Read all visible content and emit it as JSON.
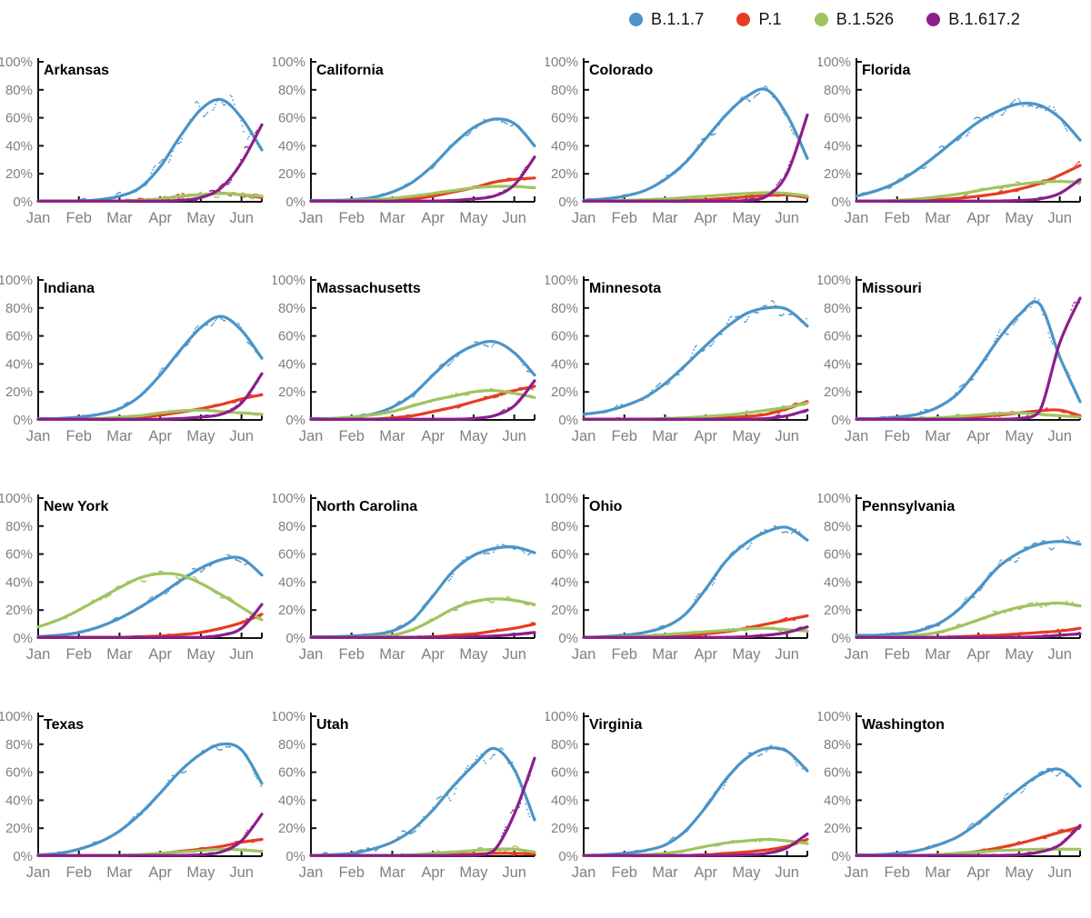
{
  "legend": {
    "position": "top-right",
    "items": [
      {
        "label": "B.1.1.7",
        "color": "#4A94C8"
      },
      {
        "label": "P.1",
        "color": "#E63C23"
      },
      {
        "label": "B.1.526",
        "color": "#A0C460"
      },
      {
        "label": "B.1.617.2",
        "color": "#8C1E8C"
      }
    ]
  },
  "axes": {
    "y_tick_labels": [
      "100%",
      "80%",
      "60%",
      "40%",
      "20%",
      "0%"
    ],
    "x_tick_labels": [
      "Jan",
      "Feb",
      "Mar",
      "Apr",
      "May",
      "Jun"
    ],
    "ylim": [
      0,
      100
    ],
    "xlim": [
      0,
      5.5
    ],
    "grid": false,
    "tick_label_color": "#808080",
    "axis_color": "#111111"
  },
  "chart_data": {
    "type": "line",
    "x_unit": "month (0=Jan 1 ... 5.5=mid-Jun)",
    "x_samples": [
      0,
      0.5,
      1,
      1.5,
      2,
      2.5,
      3,
      3.5,
      4,
      4.5,
      5,
      5.5
    ],
    "charts": [
      {
        "title": "Arkansas",
        "scatter": 2.6,
        "series": {
          "B.1.1.7": [
            0,
            0,
            0.5,
            1.5,
            4,
            10,
            25,
            47,
            66,
            73,
            60,
            37
          ],
          "P.1": [
            0,
            0,
            0,
            0,
            0.5,
            1,
            2,
            4,
            5,
            6,
            5,
            3
          ],
          "B.1.526": [
            0,
            0,
            0,
            0,
            0.5,
            1,
            2,
            4,
            5,
            6,
            5,
            4
          ],
          "B.1.617.2": [
            0,
            0,
            0,
            0,
            0,
            0,
            0,
            1,
            3,
            10,
            28,
            55
          ]
        }
      },
      {
        "title": "California",
        "scatter": 0.7,
        "series": {
          "B.1.1.7": [
            1,
            1,
            1.5,
            3,
            7,
            14,
            26,
            41,
            53,
            59,
            56,
            40
          ],
          "P.1": [
            0,
            0,
            0,
            0.5,
            1,
            2,
            4,
            7,
            10,
            14,
            16,
            17
          ],
          "B.1.526": [
            0.5,
            0.5,
            1,
            1.5,
            2.5,
            4,
            6,
            8,
            10,
            11,
            11,
            10
          ],
          "B.1.617.2": [
            0,
            0,
            0,
            0,
            0,
            0,
            0.5,
            1,
            2,
            4,
            12,
            32
          ]
        }
      },
      {
        "title": "Colorado",
        "scatter": 1.1,
        "series": {
          "B.1.1.7": [
            1,
            2,
            4,
            8,
            16,
            28,
            45,
            62,
            75,
            80,
            62,
            31
          ],
          "P.1": [
            0,
            0,
            0,
            0,
            0.5,
            1,
            1.5,
            2.5,
            3.5,
            4.5,
            5,
            3
          ],
          "B.1.526": [
            0.5,
            0.5,
            1,
            1.5,
            2,
            3,
            4,
            5,
            6,
            6.5,
            6,
            4
          ],
          "B.1.617.2": [
            0,
            0,
            0,
            0,
            0,
            0,
            0,
            0.5,
            1,
            4,
            20,
            62
          ]
        }
      },
      {
        "title": "Florida",
        "scatter": 1.3,
        "series": {
          "B.1.1.7": [
            4,
            8,
            14,
            23,
            34,
            46,
            57,
            65,
            70,
            69,
            60,
            44
          ],
          "P.1": [
            0,
            0,
            0.5,
            1,
            1.5,
            2.5,
            4,
            6,
            9,
            13,
            19,
            26
          ],
          "B.1.526": [
            0,
            0.5,
            1,
            2,
            3.5,
            5.5,
            8,
            10.5,
            12.5,
            14,
            14.5,
            14
          ],
          "B.1.617.2": [
            0,
            0,
            0,
            0,
            0,
            0,
            0,
            0.5,
            1,
            2,
            6,
            16
          ]
        }
      },
      {
        "title": "Indiana",
        "scatter": 1.0,
        "series": {
          "B.1.1.7": [
            1,
            1,
            2,
            4,
            8,
            17,
            32,
            50,
            66,
            74,
            64,
            44
          ],
          "P.1": [
            0,
            0,
            0,
            0.5,
            1,
            2,
            3.5,
            5.5,
            8,
            11,
            15,
            18
          ],
          "B.1.526": [
            0,
            0,
            0.5,
            1,
            2,
            3,
            5,
            6.5,
            7,
            6,
            5,
            4
          ],
          "B.1.617.2": [
            0,
            0,
            0,
            0,
            0,
            0,
            0.5,
            1,
            2,
            4,
            12,
            33
          ]
        }
      },
      {
        "title": "Massachusetts",
        "scatter": 1.0,
        "series": {
          "B.1.1.7": [
            1,
            1,
            2,
            4,
            9,
            18,
            32,
            45,
            53,
            56,
            48,
            32
          ],
          "P.1": [
            0,
            0,
            0,
            0.5,
            1.5,
            3,
            6,
            9,
            13,
            17,
            21,
            24
          ],
          "B.1.526": [
            0.5,
            1,
            2,
            3.5,
            6,
            10,
            14,
            17,
            20,
            21,
            19,
            16
          ],
          "B.1.617.2": [
            0,
            0,
            0,
            0,
            0,
            0,
            0,
            0.5,
            1,
            3,
            10,
            28
          ]
        }
      },
      {
        "title": "Minnesota",
        "scatter": 1.6,
        "series": {
          "B.1.1.7": [
            4,
            6,
            10,
            16,
            26,
            39,
            53,
            66,
            76,
            80,
            79,
            67
          ],
          "P.1": [
            0.5,
            0.5,
            0.5,
            0.5,
            0.5,
            0.5,
            1,
            1.5,
            2.5,
            4,
            8,
            13
          ],
          "B.1.526": [
            0,
            0,
            0.5,
            0.5,
            1,
            1.5,
            2.5,
            3.5,
            5,
            7,
            9,
            12
          ],
          "B.1.617.2": [
            0,
            0,
            0,
            0,
            0,
            0,
            0,
            0,
            0.5,
            1,
            3,
            7
          ]
        }
      },
      {
        "title": "Missouri",
        "scatter": 1.6,
        "series": {
          "B.1.1.7": [
            1,
            1,
            2,
            4,
            9,
            19,
            37,
            58,
            75,
            83,
            45,
            13
          ],
          "P.1": [
            0,
            0,
            0,
            0.5,
            1,
            1.5,
            2.5,
            3.5,
            5,
            6.5,
            7,
            3
          ],
          "B.1.526": [
            0,
            0,
            0.5,
            1,
            1.5,
            2.5,
            3.5,
            4.5,
            5,
            4,
            3,
            2
          ],
          "B.1.617.2": [
            0,
            0,
            0,
            0,
            0,
            0,
            0,
            0,
            1,
            6,
            55,
            87
          ]
        }
      },
      {
        "title": "New York",
        "scatter": 0.9,
        "series": {
          "B.1.1.7": [
            1,
            2,
            4,
            8,
            14,
            22,
            31,
            41,
            50,
            56,
            57,
            45
          ],
          "P.1": [
            0,
            0,
            0,
            0,
            0.5,
            1,
            1.5,
            2.5,
            4,
            7,
            11,
            17
          ],
          "B.1.526": [
            8,
            13,
            20,
            28,
            36,
            43,
            46,
            45,
            39,
            31,
            22,
            13
          ],
          "B.1.617.2": [
            0,
            0,
            0,
            0,
            0,
            0,
            0,
            0,
            0.5,
            2,
            7,
            24
          ]
        }
      },
      {
        "title": "North Carolina",
        "scatter": 1.0,
        "series": {
          "B.1.1.7": [
            1,
            1,
            1.5,
            2.5,
            5,
            13,
            30,
            48,
            59,
            64,
            65,
            61
          ],
          "P.1": [
            0,
            0,
            0,
            0,
            0.5,
            0.5,
            1,
            2,
            3,
            5,
            7,
            10
          ],
          "B.1.526": [
            0,
            0,
            0.5,
            1,
            2,
            6,
            13,
            21,
            26,
            28,
            27,
            24
          ],
          "B.1.617.2": [
            0,
            0,
            0,
            0,
            0,
            0,
            0,
            0.5,
            1,
            1.5,
            2.5,
            4
          ]
        }
      },
      {
        "title": "Ohio",
        "scatter": 1.2,
        "series": {
          "B.1.1.7": [
            0.5,
            1,
            2,
            4,
            8,
            17,
            35,
            55,
            68,
            76,
            79,
            70
          ],
          "P.1": [
            0,
            0,
            0,
            0.5,
            1,
            1.5,
            3,
            4.5,
            7,
            10,
            13,
            16
          ],
          "B.1.526": [
            0,
            0.5,
            1,
            1.5,
            2.5,
            3.5,
            4.5,
            5.5,
            6.5,
            7,
            6,
            5
          ],
          "B.1.617.2": [
            0,
            0,
            0,
            0,
            0,
            0,
            0,
            0.5,
            1,
            2,
            4,
            8
          ]
        }
      },
      {
        "title": "Pennsylvania",
        "scatter": 1.3,
        "series": {
          "B.1.1.7": [
            2,
            2,
            3,
            5,
            10,
            20,
            35,
            51,
            61,
            67,
            69,
            67
          ],
          "P.1": [
            0,
            0,
            0,
            0,
            0.5,
            1,
            1.5,
            2,
            3,
            4,
            5,
            7
          ],
          "B.1.526": [
            0.5,
            0.5,
            1,
            2,
            4,
            8,
            13,
            18,
            22,
            24,
            25,
            23
          ],
          "B.1.617.2": [
            0,
            0,
            0,
            0,
            0,
            0,
            0,
            0,
            0.5,
            1,
            2,
            3
          ]
        }
      },
      {
        "title": "Texas",
        "scatter": 1.0,
        "series": {
          "B.1.1.7": [
            1,
            2,
            5,
            10,
            18,
            30,
            45,
            61,
            73,
            80,
            76,
            52
          ],
          "P.1": [
            0,
            0,
            0,
            0,
            0.5,
            1,
            2,
            3.5,
            5,
            7,
            10,
            12
          ],
          "B.1.526": [
            0,
            0,
            0,
            0,
            0.5,
            1,
            2,
            3,
            4,
            5,
            4.5,
            3.5
          ],
          "B.1.617.2": [
            0,
            0,
            0,
            0,
            0,
            0,
            0,
            0.5,
            1,
            3,
            11,
            30
          ]
        }
      },
      {
        "title": "Utah",
        "scatter": 2.2,
        "series": {
          "B.1.1.7": [
            0.5,
            1,
            2,
            5,
            10,
            19,
            33,
            50,
            65,
            77,
            62,
            26
          ],
          "P.1": [
            0,
            0,
            0,
            0,
            0,
            0,
            0.5,
            1,
            1.5,
            2,
            2,
            1.5
          ],
          "B.1.526": [
            0,
            0,
            0,
            0,
            0.5,
            1,
            2,
            3,
            4,
            5,
            5,
            3
          ],
          "B.1.617.2": [
            0,
            0,
            0,
            0,
            0,
            0,
            0,
            0,
            0.5,
            4,
            30,
            70
          ]
        }
      },
      {
        "title": "Virginia",
        "scatter": 1.0,
        "series": {
          "B.1.1.7": [
            0.5,
            1,
            2,
            4,
            8,
            18,
            35,
            55,
            70,
            77,
            75,
            61
          ],
          "P.1": [
            0,
            0,
            0,
            0,
            0,
            0.5,
            1,
            2,
            3,
            4.5,
            7,
            12
          ],
          "B.1.526": [
            0,
            0,
            0.5,
            1,
            2,
            4,
            7,
            9.5,
            11,
            12,
            11,
            9
          ],
          "B.1.617.2": [
            0,
            0,
            0,
            0,
            0,
            0,
            0,
            0.5,
            1,
            2,
            6,
            16
          ]
        }
      },
      {
        "title": "Washington",
        "scatter": 1.1,
        "series": {
          "B.1.1.7": [
            1,
            1,
            2,
            4,
            8,
            14,
            24,
            36,
            48,
            58,
            62,
            50
          ],
          "P.1": [
            0,
            0,
            0,
            0.5,
            1,
            2,
            3.5,
            6,
            9,
            13,
            17,
            21
          ],
          "B.1.526": [
            0,
            0,
            0.5,
            0.5,
            1,
            2,
            3,
            4,
            4.5,
            5,
            5,
            5
          ],
          "B.1.617.2": [
            0,
            0,
            0,
            0,
            0,
            0,
            0,
            0.5,
            1,
            3,
            8,
            22
          ]
        }
      }
    ]
  }
}
